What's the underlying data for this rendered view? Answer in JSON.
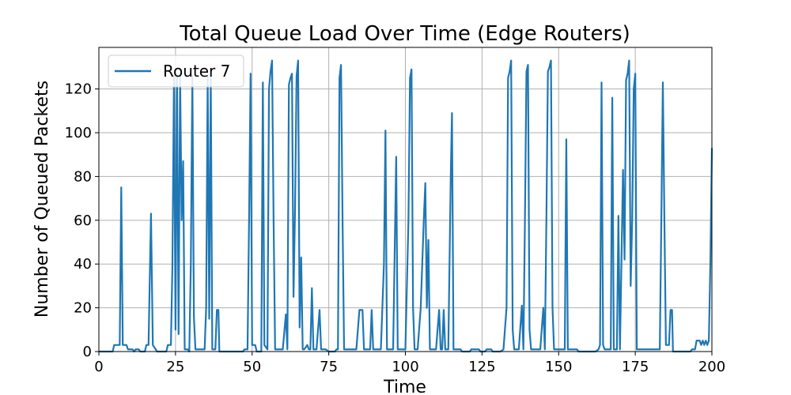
{
  "chart_data": {
    "type": "line",
    "title": "Total Queue Load Over Time (Edge Routers)",
    "xlabel": "Time",
    "ylabel": "Number of Queued Packets",
    "xlim": [
      0,
      200
    ],
    "ylim": [
      0,
      139
    ],
    "xticks": [
      0,
      25,
      50,
      75,
      100,
      125,
      150,
      175,
      200
    ],
    "yticks": [
      0,
      20,
      40,
      60,
      80,
      100,
      120
    ],
    "grid": true,
    "legend_position": "top-left",
    "series": [
      {
        "name": "Router 7",
        "color": "#1f77b4",
        "points": [
          [
            0,
            0
          ],
          [
            4.5,
            0
          ],
          [
            5,
            3
          ],
          [
            6,
            3
          ],
          [
            6.8,
            3
          ],
          [
            7.3,
            75
          ],
          [
            7.8,
            3
          ],
          [
            9,
            3
          ],
          [
            9.5,
            1
          ],
          [
            11,
            1
          ],
          [
            11.5,
            0
          ],
          [
            12,
            1
          ],
          [
            13,
            1
          ],
          [
            13.5,
            0
          ],
          [
            15,
            0
          ],
          [
            15.5,
            3
          ],
          [
            16.2,
            3
          ],
          [
            17,
            63
          ],
          [
            17.6,
            3
          ],
          [
            19,
            0
          ],
          [
            22,
            0
          ],
          [
            22.5,
            3
          ],
          [
            23.5,
            3
          ],
          [
            24,
            40
          ],
          [
            24.5,
            126
          ],
          [
            25,
            10
          ],
          [
            25.5,
            126
          ],
          [
            26,
            8
          ],
          [
            26.5,
            126
          ],
          [
            27,
            60
          ],
          [
            27.5,
            87
          ],
          [
            28,
            1
          ],
          [
            29,
            1
          ],
          [
            29.5,
            0
          ],
          [
            30,
            40
          ],
          [
            30.5,
            126
          ],
          [
            31,
            16
          ],
          [
            31.5,
            1
          ],
          [
            33,
            1
          ],
          [
            34.5,
            1
          ],
          [
            35,
            20
          ],
          [
            35.5,
            126
          ],
          [
            36,
            15
          ],
          [
            36.5,
            127
          ],
          [
            37,
            1
          ],
          [
            38,
            1
          ],
          [
            38.5,
            19
          ],
          [
            39,
            19
          ],
          [
            39.3,
            0
          ],
          [
            47,
            0
          ],
          [
            47.5,
            1
          ],
          [
            48.5,
            1
          ],
          [
            49,
            60
          ],
          [
            49.5,
            127
          ],
          [
            50,
            3
          ],
          [
            51,
            3
          ],
          [
            51.5,
            0
          ],
          [
            53,
            0
          ],
          [
            53.5,
            123
          ],
          [
            54,
            3
          ],
          [
            55,
            1
          ],
          [
            55.5,
            120
          ],
          [
            56,
            128
          ],
          [
            56.5,
            133
          ],
          [
            57,
            60
          ],
          [
            57.5,
            1
          ],
          [
            60,
            1
          ],
          [
            61,
            17
          ],
          [
            61.5,
            1
          ],
          [
            62,
            122
          ],
          [
            62.5,
            125
          ],
          [
            63,
            127
          ],
          [
            63.5,
            25
          ],
          [
            64,
            65
          ],
          [
            64.5,
            126
          ],
          [
            65,
            133
          ],
          [
            65.5,
            11
          ],
          [
            66,
            43
          ],
          [
            66.5,
            1
          ],
          [
            67,
            1
          ],
          [
            68,
            3
          ],
          [
            68.5,
            1
          ],
          [
            69,
            1
          ],
          [
            69.5,
            29
          ],
          [
            70,
            1
          ],
          [
            71,
            1
          ],
          [
            72,
            19
          ],
          [
            72.5,
            1
          ],
          [
            74,
            1
          ],
          [
            75,
            0
          ],
          [
            77,
            0
          ],
          [
            77.5,
            1
          ],
          [
            78,
            1
          ],
          [
            78.5,
            125
          ],
          [
            79,
            131
          ],
          [
            79.5,
            60
          ],
          [
            80,
            1
          ],
          [
            84,
            1
          ],
          [
            85,
            19
          ],
          [
            86,
            19
          ],
          [
            86.5,
            1
          ],
          [
            88.5,
            1
          ],
          [
            89,
            19
          ],
          [
            89.5,
            1
          ],
          [
            92,
            1
          ],
          [
            93,
            40
          ],
          [
            93.5,
            101
          ],
          [
            94,
            1
          ],
          [
            96,
            1
          ],
          [
            97,
            89
          ],
          [
            97.5,
            1
          ],
          [
            100,
            1
          ],
          [
            101,
            60
          ],
          [
            101.5,
            125
          ],
          [
            102,
            129
          ],
          [
            102.5,
            20
          ],
          [
            103,
            1
          ],
          [
            104,
            1
          ],
          [
            105,
            20
          ],
          [
            106,
            60
          ],
          [
            106.5,
            77
          ],
          [
            107,
            20
          ],
          [
            107.5,
            51
          ],
          [
            108,
            1
          ],
          [
            110,
            1
          ],
          [
            111,
            19
          ],
          [
            111.5,
            1
          ],
          [
            112,
            1
          ],
          [
            112.5,
            19
          ],
          [
            113,
            1
          ],
          [
            114,
            1
          ],
          [
            114.8,
            80
          ],
          [
            115.2,
            109
          ],
          [
            115.7,
            1
          ],
          [
            117,
            1
          ],
          [
            118,
            1
          ],
          [
            118.5,
            0
          ],
          [
            121,
            0
          ],
          [
            121.5,
            1
          ],
          [
            124,
            1
          ],
          [
            124.5,
            0
          ],
          [
            126,
            0
          ],
          [
            126.5,
            1
          ],
          [
            128,
            1
          ],
          [
            128.5,
            0
          ],
          [
            131,
            0
          ],
          [
            132,
            1
          ],
          [
            133,
            20
          ],
          [
            133.5,
            125
          ],
          [
            134,
            128
          ],
          [
            134.5,
            133
          ],
          [
            135,
            10
          ],
          [
            135.5,
            1
          ],
          [
            137,
            1
          ],
          [
            138,
            21
          ],
          [
            138.5,
            1
          ],
          [
            139,
            60
          ],
          [
            139.5,
            128
          ],
          [
            140,
            131
          ],
          [
            140.5,
            10
          ],
          [
            141,
            1
          ],
          [
            143,
            1
          ],
          [
            144,
            1
          ],
          [
            145,
            20
          ],
          [
            145.5,
            1
          ],
          [
            146,
            60
          ],
          [
            146.5,
            128
          ],
          [
            147,
            130
          ],
          [
            147.5,
            133
          ],
          [
            148,
            20
          ],
          [
            148.5,
            1
          ],
          [
            150,
            1
          ],
          [
            151,
            1
          ],
          [
            152,
            1
          ],
          [
            152.5,
            97
          ],
          [
            153,
            1
          ],
          [
            156,
            1
          ],
          [
            156.5,
            0
          ],
          [
            158,
            0
          ],
          [
            162,
            0
          ],
          [
            163,
            1
          ],
          [
            163.5,
            3
          ],
          [
            164,
            123
          ],
          [
            164.5,
            3
          ],
          [
            165,
            1
          ],
          [
            166,
            1
          ],
          [
            167,
            1
          ],
          [
            167.5,
            116
          ],
          [
            168,
            1
          ],
          [
            169,
            1
          ],
          [
            169.5,
            62
          ],
          [
            170,
            1
          ],
          [
            171,
            83
          ],
          [
            171.5,
            42
          ],
          [
            172,
            124
          ],
          [
            172.5,
            127
          ],
          [
            173,
            133
          ],
          [
            173.5,
            30
          ],
          [
            174,
            60
          ],
          [
            174.5,
            120
          ],
          [
            175,
            127
          ],
          [
            175.5,
            1
          ],
          [
            177,
            1
          ],
          [
            180,
            1
          ],
          [
            183,
            1
          ],
          [
            183.5,
            60
          ],
          [
            184,
            123
          ],
          [
            184.5,
            60
          ],
          [
            185,
            3
          ],
          [
            186,
            3
          ],
          [
            186.5,
            19
          ],
          [
            187,
            19
          ],
          [
            187.3,
            0
          ],
          [
            193,
            0
          ],
          [
            193.5,
            1
          ],
          [
            194.5,
            1
          ],
          [
            195,
            5
          ],
          [
            196,
            5
          ],
          [
            196.5,
            3
          ],
          [
            197,
            5
          ],
          [
            197.5,
            3
          ],
          [
            198,
            5
          ],
          [
            198.5,
            3
          ],
          [
            199,
            5
          ],
          [
            199.5,
            40
          ],
          [
            200,
            93
          ]
        ]
      }
    ]
  }
}
